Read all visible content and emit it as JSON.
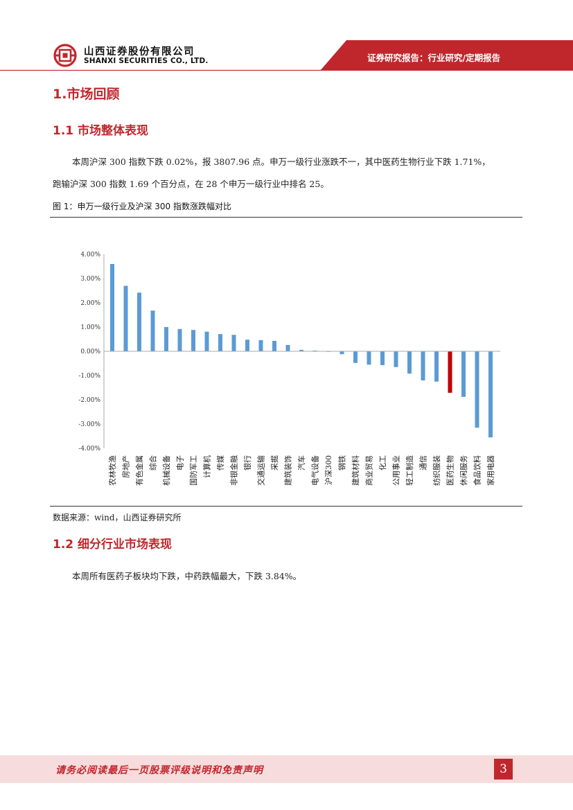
{
  "header": {
    "company_cn": "山西证券股份有限公司",
    "company_en": "SHANXI SECURITIES CO., LTD.",
    "report_type": "证券研究报告：行业研究/定期报告",
    "brand_color": "#c0272d"
  },
  "section": {
    "title": "1.市场回顾"
  },
  "subsection1": {
    "title": "1.1 市场整体表现",
    "para1": "本周沪深 300 指数下跌 0.02%，报 3807.96 点。申万一级行业涨跌不一，其中医药生物行业下跌 1.71%，",
    "para2": "跑输沪深 300 指数 1.69 个百分点，在 28 个申万一级行业中排名 25。"
  },
  "figure": {
    "caption": "图 1：申万一级行业及沪深 300 指数涨跌幅对比",
    "source": "数据来源：wind，山西证券研究所"
  },
  "chart_data": {
    "type": "bar",
    "title": "",
    "xlabel": "",
    "ylabel": "",
    "ylim": [
      -4,
      4
    ],
    "y_ticks": [
      "4.00%",
      "3.00%",
      "2.00%",
      "1.00%",
      "0.00%",
      "-1.00%",
      "-2.00%",
      "-3.00%",
      "-4.00%"
    ],
    "categories": [
      "农林牧渔",
      "房地产",
      "有色金属",
      "综合",
      "机械设备",
      "电子",
      "国防军工",
      "计算机",
      "传媒",
      "非银金融",
      "银行",
      "交通运输",
      "采掘",
      "建筑装饰",
      "汽车",
      "电气设备",
      "沪深300",
      "钢铁",
      "建筑材料",
      "商业贸易",
      "化工",
      "公用事业",
      "轻工制造",
      "通信",
      "纺织服装",
      "医药生物",
      "休闲服务",
      "食品饮料",
      "家用电器"
    ],
    "values": [
      3.6,
      2.7,
      2.42,
      1.68,
      1.0,
      0.92,
      0.88,
      0.81,
      0.71,
      0.68,
      0.48,
      0.46,
      0.43,
      0.26,
      0.06,
      0.03,
      -0.02,
      -0.12,
      -0.48,
      -0.55,
      -0.57,
      -0.65,
      -0.92,
      -1.2,
      -1.25,
      -1.71,
      -1.88,
      -3.15,
      -3.55
    ],
    "bar_color": "#5b9bd5",
    "highlight_category": "医药生物",
    "highlight_color": "#c00000",
    "grid": false
  },
  "subsection2": {
    "title": "1.2 细分行业市场表现",
    "para": "本周所有医药子板块均下跌，中药跌幅最大，下跌 3.84%。"
  },
  "footer": {
    "disclaimer": "请务必阅读最后一页股票评级说明和免责声明",
    "page": "3"
  }
}
